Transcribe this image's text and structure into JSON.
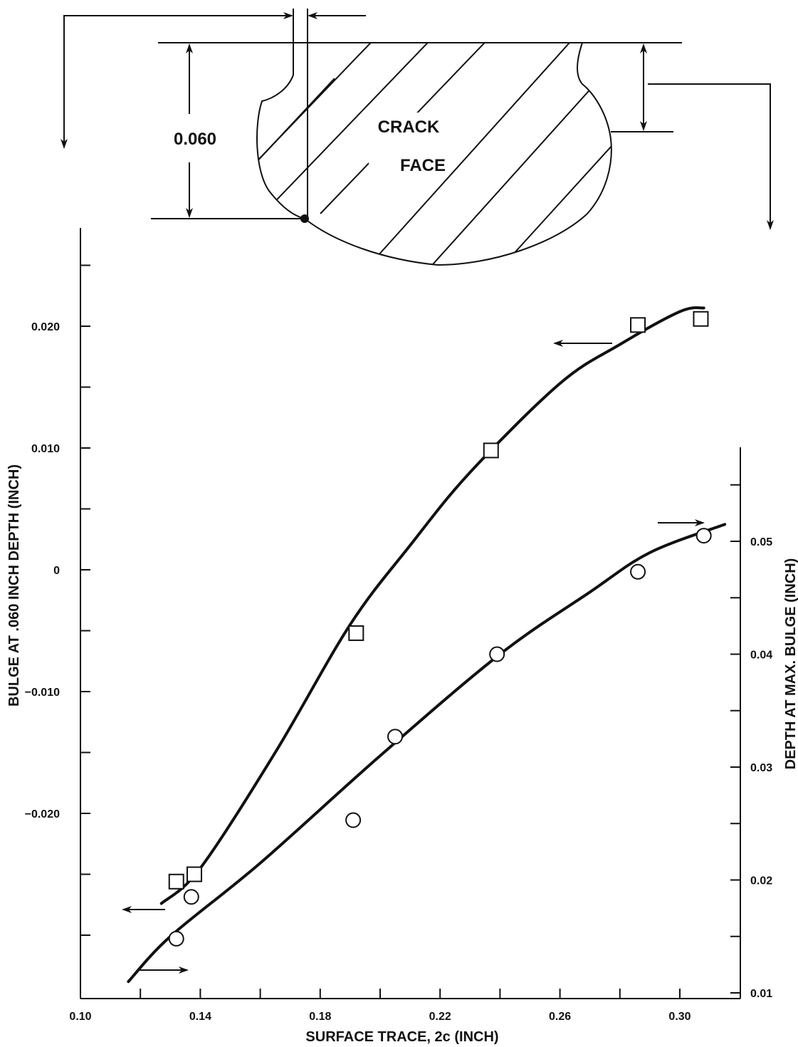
{
  "chart_data": {
    "type": "scatter",
    "title": "",
    "xlabel": "SURFACE TRACE, 2c (INCH)",
    "ylabel": "BULGE AT .060 INCH DEPTH  (INCH)",
    "y2label": "DEPTH AT MAX. BULGE (INCH)",
    "xlim": [
      0.1,
      0.32
    ],
    "ylim": [
      -0.034,
      0.025
    ],
    "y2lim": [
      0.01,
      0.055
    ],
    "grid": false,
    "x_ticks": [
      0.1,
      0.12,
      0.14,
      0.16,
      0.18,
      0.2,
      0.22,
      0.24,
      0.26,
      0.28,
      0.3
    ],
    "x_tick_labels": [
      {
        "value": 0.1,
        "label": "0.10"
      },
      {
        "value": 0.14,
        "label": "0.14"
      },
      {
        "value": 0.18,
        "label": "0.18"
      },
      {
        "value": 0.22,
        "label": "0.22"
      },
      {
        "value": 0.26,
        "label": "0.26"
      },
      {
        "value": 0.3,
        "label": "0.30"
      }
    ],
    "y_ticks": [
      -0.03,
      -0.025,
      -0.02,
      -0.015,
      -0.01,
      -0.005,
      0,
      0.005,
      0.01,
      0.015,
      0.02,
      0.025
    ],
    "y_tick_labels": [
      {
        "value": 0.02,
        "label": "0.020"
      },
      {
        "value": 0.01,
        "label": "0.010"
      },
      {
        "value": 0,
        "label": "0"
      },
      {
        "value": -0.01,
        "label": "−0.010"
      },
      {
        "value": -0.02,
        "label": "−0.020"
      }
    ],
    "y2_ticks": [
      0.01,
      0.015,
      0.02,
      0.025,
      0.03,
      0.035,
      0.04,
      0.045,
      0.05,
      0.055
    ],
    "y2_tick_labels": [
      {
        "value": 0.05,
        "label": "0.05"
      },
      {
        "value": 0.04,
        "label": "0.04"
      },
      {
        "value": 0.03,
        "label": "0.03"
      },
      {
        "value": 0.02,
        "label": "0.02"
      },
      {
        "value": 0.01,
        "label": "0.01"
      }
    ],
    "series": [
      {
        "axis": "left",
        "marker": "square",
        "points": [
          {
            "x": 0.132,
            "y": -0.0256
          },
          {
            "x": 0.138,
            "y": -0.025
          },
          {
            "x": 0.192,
            "y": -0.0052
          },
          {
            "x": 0.237,
            "y": 0.0098
          },
          {
            "x": 0.286,
            "y": 0.0201
          },
          {
            "x": 0.307,
            "y": 0.0206
          }
        ],
        "curve": [
          {
            "x": 0.127,
            "y": -0.0274
          },
          {
            "x": 0.14,
            "y": -0.0245
          },
          {
            "x": 0.165,
            "y": -0.015
          },
          {
            "x": 0.19,
            "y": -0.0045
          },
          {
            "x": 0.21,
            "y": 0.002
          },
          {
            "x": 0.23,
            "y": 0.008
          },
          {
            "x": 0.26,
            "y": 0.0153
          },
          {
            "x": 0.28,
            "y": 0.0185
          },
          {
            "x": 0.3,
            "y": 0.0212
          },
          {
            "x": 0.308,
            "y": 0.0215
          }
        ]
      },
      {
        "axis": "right",
        "marker": "circle",
        "points": [
          {
            "x": 0.132,
            "y": 0.0148
          },
          {
            "x": 0.137,
            "y": 0.0185
          },
          {
            "x": 0.191,
            "y": 0.0253
          },
          {
            "x": 0.205,
            "y": 0.0327
          },
          {
            "x": 0.239,
            "y": 0.04
          },
          {
            "x": 0.286,
            "y": 0.0473
          },
          {
            "x": 0.308,
            "y": 0.0505
          }
        ],
        "curve": [
          {
            "x": 0.116,
            "y": 0.011
          },
          {
            "x": 0.13,
            "y": 0.015
          },
          {
            "x": 0.16,
            "y": 0.0215
          },
          {
            "x": 0.2,
            "y": 0.031
          },
          {
            "x": 0.24,
            "y": 0.04
          },
          {
            "x": 0.27,
            "y": 0.0455
          },
          {
            "x": 0.29,
            "y": 0.049
          },
          {
            "x": 0.315,
            "y": 0.0515
          }
        ]
      }
    ],
    "annotations": {
      "diagram_top_label": "CRACK",
      "diagram_bottom_label": "FACE",
      "dimension_label": "0.060"
    }
  }
}
